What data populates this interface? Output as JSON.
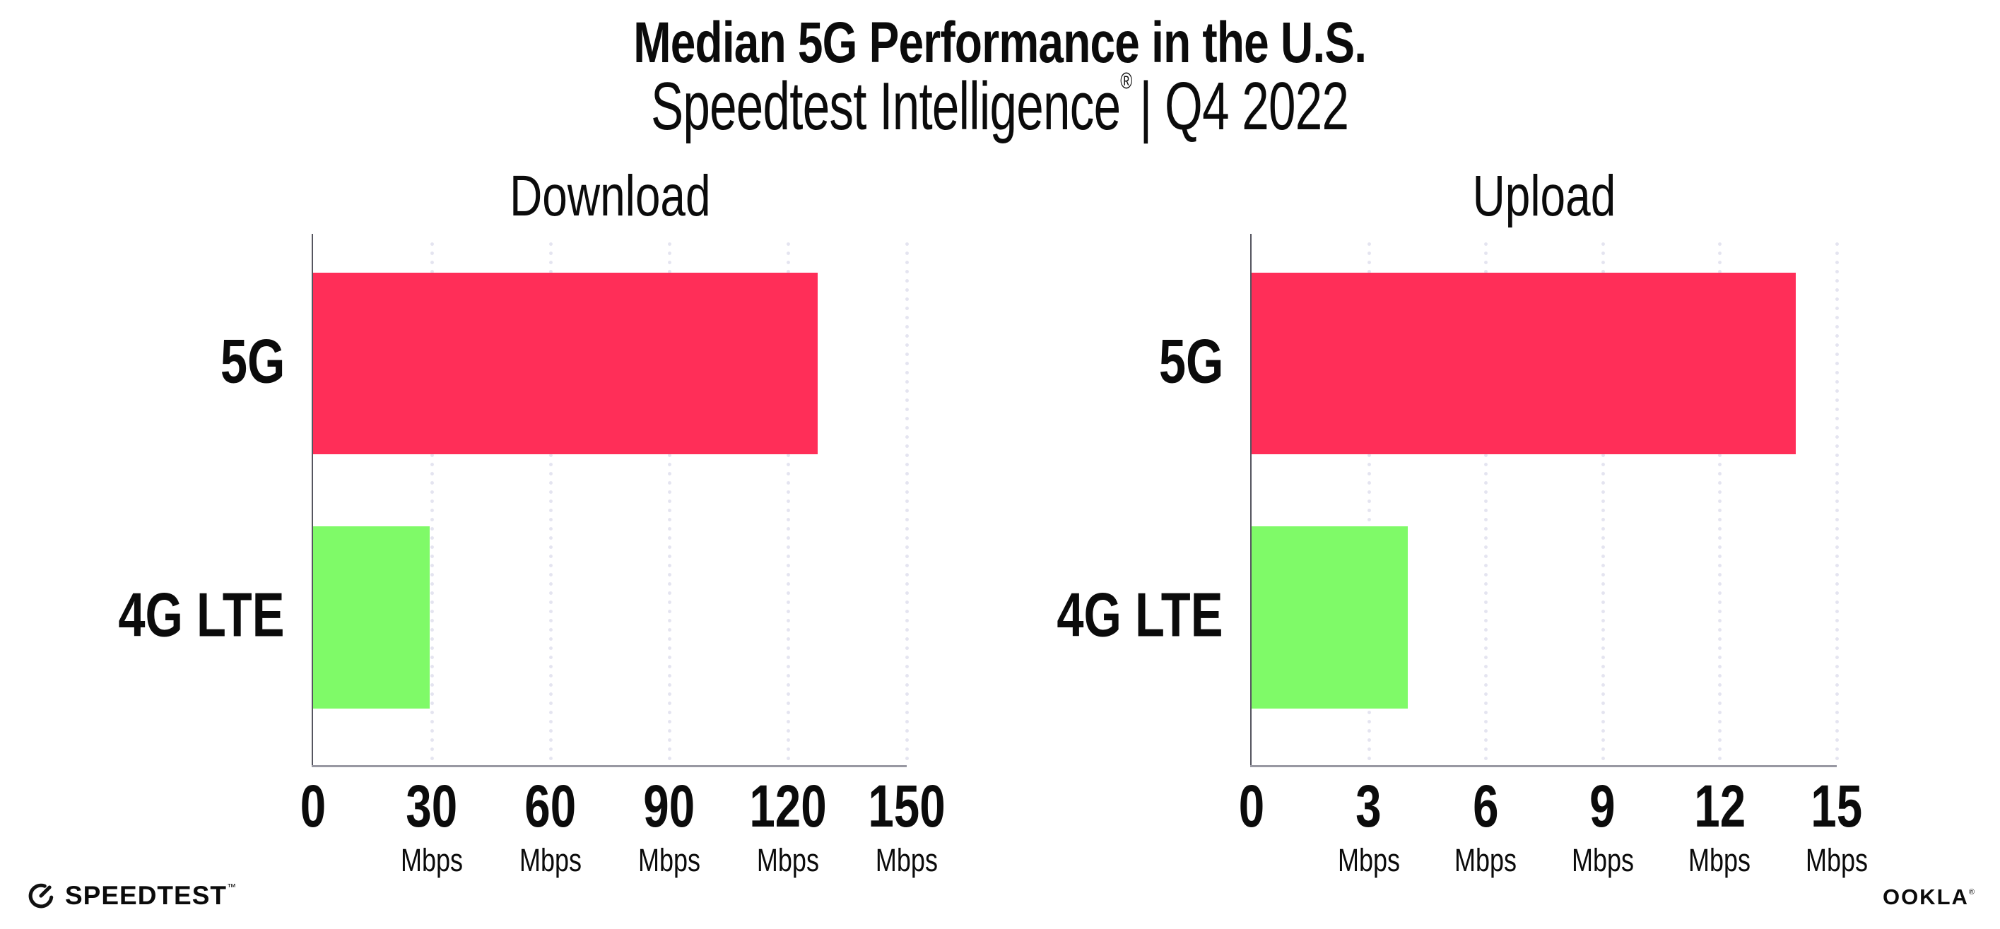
{
  "header": {
    "title": "Median 5G Performance in the U.S.",
    "subtitle_brand": "Speedtest Intelligence",
    "subtitle_reg": "®",
    "subtitle_suffix": "| Q4 2022"
  },
  "footer": {
    "speedtest_label": "SPEEDTEST",
    "speedtest_tm": "™",
    "ookla_label": "OOKLA",
    "ookla_reg": "®"
  },
  "colors": {
    "bar_5g": "#FF2E58",
    "bar_4g_lte": "#7FFA68",
    "grid_dot": "#E4E4F0",
    "y_axis": "#55555F",
    "x_axis": "#9898A2",
    "text": "#0B0B0B"
  },
  "chart_data": [
    {
      "type": "bar",
      "orientation": "horizontal",
      "title": "Download",
      "categories": [
        "5G",
        "4G LTE"
      ],
      "values": [
        127.5,
        29.5
      ],
      "unit": "Mbps",
      "xlim": [
        0,
        150
      ],
      "xticks": [
        0,
        30,
        60,
        90,
        120,
        150
      ],
      "grid": "dotted-vertical",
      "legend": "none",
      "series_colors": [
        "#FF2E58",
        "#7FFA68"
      ]
    },
    {
      "type": "bar",
      "orientation": "horizontal",
      "title": "Upload",
      "categories": [
        "5G",
        "4G LTE"
      ],
      "values": [
        13.95,
        4.0
      ],
      "unit": "Mbps",
      "xlim": [
        0,
        15
      ],
      "xticks": [
        0,
        3,
        6,
        9,
        12,
        15
      ],
      "grid": "dotted-vertical",
      "legend": "none",
      "series_colors": [
        "#FF2E58",
        "#7FFA68"
      ]
    }
  ]
}
